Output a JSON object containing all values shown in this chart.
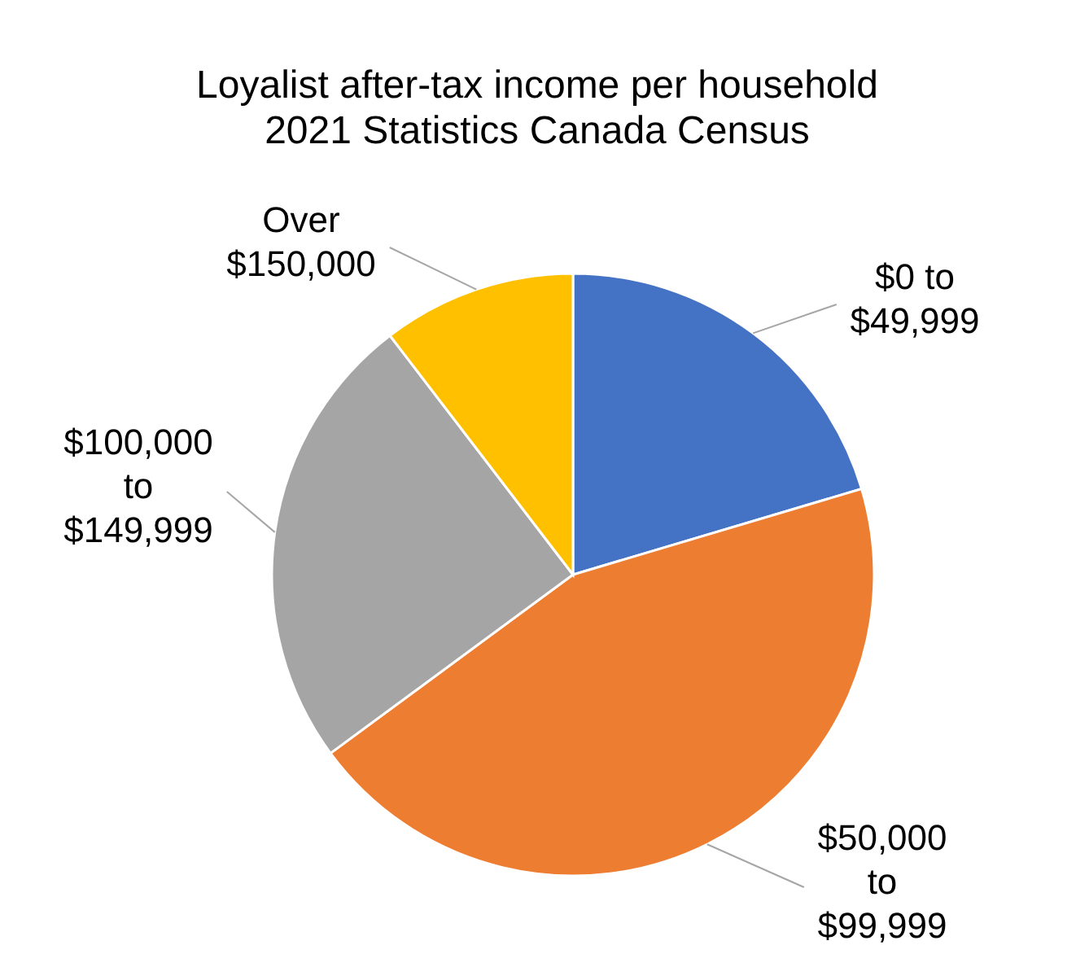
{
  "chart_data": {
    "type": "pie",
    "title": "Loyalist after-tax income per household\n2021 Statistics Canada Census",
    "categories": [
      "$0 to $49,999",
      "$50,000 to $99,999",
      "$100,000 to $149,999",
      "Over $150,000"
    ],
    "values": [
      20.4,
      44.5,
      24.7,
      10.4
    ],
    "colors": [
      "#4472c4",
      "#ed7d31",
      "#a5a5a5",
      "#ffc000"
    ],
    "legend": false
  }
}
